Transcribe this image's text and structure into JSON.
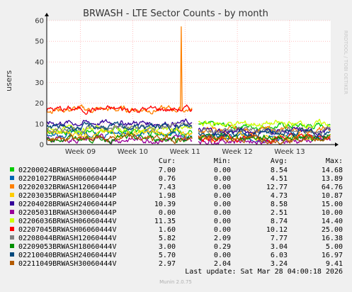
{
  "chart_data": {
    "type": "line",
    "title": "BRWASH - LTE Sector Counts - by month",
    "ylabel": "users",
    "xlabel": "",
    "ylim": [
      0,
      60
    ],
    "y_ticks": [
      0,
      10,
      20,
      30,
      40,
      50,
      60
    ],
    "x_range_days": [
      0,
      38
    ],
    "x_ticks": [
      {
        "day": 4.5,
        "label": "Week 09"
      },
      {
        "day": 11.5,
        "label": "Week 10"
      },
      {
        "day": 18.5,
        "label": "Week 11"
      },
      {
        "day": 25.5,
        "label": "Week 12"
      },
      {
        "day": 32.5,
        "label": "Week 13"
      }
    ],
    "grid": true,
    "data_gap_days": [
      19.5,
      20.3
    ],
    "series": [
      {
        "name": "02200024BRWASH00060444P",
        "color": "#00cc00",
        "values_before": 6.5,
        "values_after": 9.0,
        "spike": null
      },
      {
        "name": "02201027BRWASH06060444P",
        "color": "#0066b3",
        "values_before": 5.5,
        "values_after": 3.5,
        "spike": null
      },
      {
        "name": "02202032BRWASH12060444P",
        "color": "#ff8000",
        "values_before": 17.0,
        "values_after": 7.0,
        "spike": {
          "day": 18.0,
          "value": 57
        }
      },
      {
        "name": "02203035BRWASH18060444P",
        "color": "#ffcc00",
        "values_before": 5.5,
        "values_after": 4.0,
        "spike": null
      },
      {
        "name": "02204028BRWASH24060444P",
        "color": "#330099",
        "values_before": 10.5,
        "values_after": 6.5,
        "spike": null
      },
      {
        "name": "02205031BRWASH30060444P",
        "color": "#990099",
        "values_before": 2.5,
        "values_after": 2.0,
        "spike": null
      },
      {
        "name": "02206036BRWASH06060444V",
        "color": "#ccff00",
        "values_before": 7.5,
        "values_after": 10.0,
        "spike": null
      },
      {
        "name": "02207045BRWASH06060444V",
        "color": "#ff0000",
        "values_before": 17.0,
        "values_after": 3.5,
        "spike": null
      },
      {
        "name": "02208044BRWASH12060444V",
        "color": "#808080",
        "values_before": 8.0,
        "values_after": 7.0,
        "spike": null
      },
      {
        "name": "02209053BRWASH18060444V",
        "color": "#008f00",
        "values_before": 3.0,
        "values_after": 3.5,
        "spike": null
      },
      {
        "name": "02210040BRWASH24060444V",
        "color": "#00487d",
        "values_before": 8.5,
        "values_after": 5.5,
        "spike": null
      },
      {
        "name": "02211049BRWASH30060444V",
        "color": "#b35a00",
        "values_before": 3.0,
        "values_after": 3.0,
        "spike": null
      }
    ]
  },
  "legend": {
    "headers": {
      "cur": "Cur:",
      "min": "Min:",
      "avg": "Avg:",
      "max": "Max:"
    },
    "rows": [
      {
        "name": "02200024BRWASH00060444P",
        "color": "#00cc00",
        "cur": "7.00",
        "min": "0.00",
        "avg": "8.54",
        "max": "14.68"
      },
      {
        "name": "02201027BRWASH06060444P",
        "color": "#0066b3",
        "cur": "0.76",
        "min": "0.00",
        "avg": "4.51",
        "max": "13.89"
      },
      {
        "name": "02202032BRWASH12060444P",
        "color": "#ff8000",
        "cur": "7.43",
        "min": "0.00",
        "avg": "12.77",
        "max": "64.76"
      },
      {
        "name": "02203035BRWASH18060444P",
        "color": "#ffcc00",
        "cur": "1.98",
        "min": "0.00",
        "avg": "4.73",
        "max": "10.87"
      },
      {
        "name": "02204028BRWASH24060444P",
        "color": "#330099",
        "cur": "10.39",
        "min": "0.00",
        "avg": "8.58",
        "max": "15.00"
      },
      {
        "name": "02205031BRWASH30060444P",
        "color": "#990099",
        "cur": "0.00",
        "min": "0.00",
        "avg": "2.51",
        "max": "10.00"
      },
      {
        "name": "02206036BRWASH06060444V",
        "color": "#ccff00",
        "cur": "11.35",
        "min": "0.00",
        "avg": "8.74",
        "max": "14.40"
      },
      {
        "name": "02207045BRWASH06060444V",
        "color": "#ff0000",
        "cur": "1.60",
        "min": "0.00",
        "avg": "10.12",
        "max": "25.00"
      },
      {
        "name": "02208044BRWASH12060444V",
        "color": "#808080",
        "cur": "5.82",
        "min": "2.09",
        "avg": "7.77",
        "max": "16.38"
      },
      {
        "name": "02209053BRWASH18060444V",
        "color": "#008f00",
        "cur": "3.00",
        "min": "0.29",
        "avg": "3.04",
        "max": "5.00"
      },
      {
        "name": "02210040BRWASH24060444V",
        "color": "#00487d",
        "cur": "5.70",
        "min": "0.00",
        "avg": "6.03",
        "max": "16.97"
      },
      {
        "name": "02211049BRWASH30060444V",
        "color": "#b35a00",
        "cur": "2.97",
        "min": "2.04",
        "avg": "3.24",
        "max": "9.41"
      }
    ]
  },
  "last_update": "Last update: Sat Mar 28 04:00:18 2026",
  "side_text": "RRDTOOL / TOBI OETIKER",
  "footer": "Munin 2.0.75",
  "colors": {
    "background": "#f0f0f0",
    "plot_bg": "#ffffff",
    "grid": "#ff9999",
    "axis": "#000000"
  }
}
